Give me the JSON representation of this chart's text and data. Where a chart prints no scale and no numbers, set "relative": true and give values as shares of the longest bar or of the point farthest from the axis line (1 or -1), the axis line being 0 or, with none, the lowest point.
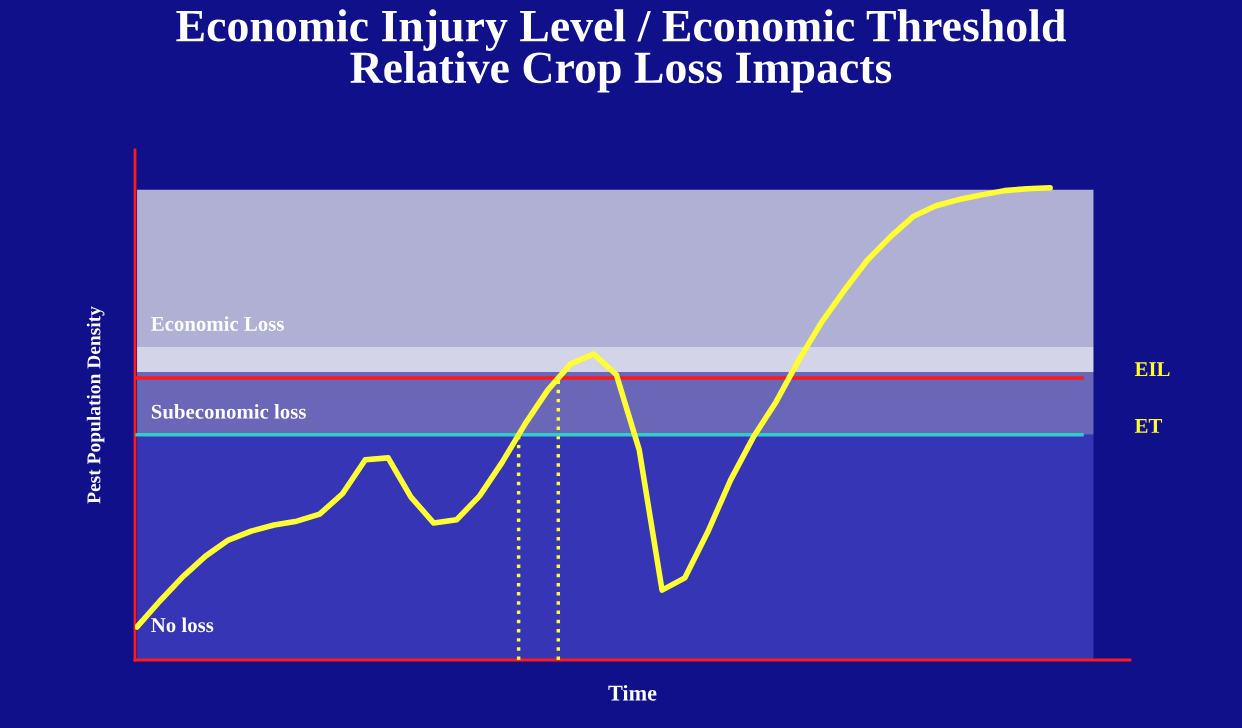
{
  "chart_data": {
    "type": "line",
    "title": "Economic Injury Level / Economic Threshold\nRelative Crop Loss Impacts",
    "xlabel": "Time",
    "ylabel": "Pest Population Density",
    "relative": true,
    "categories": [
      null,
      null,
      null,
      null,
      null,
      null,
      null,
      null,
      null,
      null,
      null,
      null,
      null,
      null,
      null,
      null,
      null,
      null,
      null,
      null,
      null,
      null,
      null,
      null,
      null,
      null,
      null,
      null,
      null,
      null,
      null,
      null,
      null,
      null,
      null,
      null,
      null,
      null,
      null,
      null,
      null
    ],
    "series": [
      {
        "color": "#ffff33",
        "values": [
          0.07,
          0.125,
          0.176,
          0.22,
          0.254,
          0.273,
          0.286,
          0.294,
          0.309,
          0.352,
          0.424,
          0.428,
          0.345,
          0.29,
          0.297,
          0.347,
          0.419,
          0.5,
          0.572,
          0.627,
          0.648,
          0.604,
          0.445,
          0.148,
          0.174,
          0.271,
          0.381,
          0.472,
          0.547,
          0.636,
          0.716,
          0.784,
          0.847,
          0.896,
          0.939,
          0.962,
          0.975,
          0.985,
          0.994,
          0.998,
          1.0
        ]
      }
    ],
    "bands": [
      {
        "axis": "y",
        "from": 0.663,
        "to": 0.996,
        "label": "Economic Loss",
        "color": "#b0b0d4"
      },
      {
        "axis": "y",
        "from": 0.61,
        "to": 0.663,
        "color": "#d4d4e8"
      },
      {
        "axis": "y",
        "from": 0.477,
        "to": 0.61,
        "label": "Subeconomic loss",
        "color": "#6a66b8"
      },
      {
        "axis": "y",
        "from": 0,
        "to": 0.477,
        "label": "No loss",
        "color": "#3535b5"
      }
    ],
    "ref_lines": [
      {
        "axis": "y",
        "value": 0.597,
        "label": "EIL",
        "color": "#ff1a1a",
        "line_style": "solid"
      },
      {
        "axis": "y",
        "value": 0.477,
        "label": "ET",
        "color": "#33cccc",
        "line_style": "solid"
      }
    ],
    "legend": false
  }
}
